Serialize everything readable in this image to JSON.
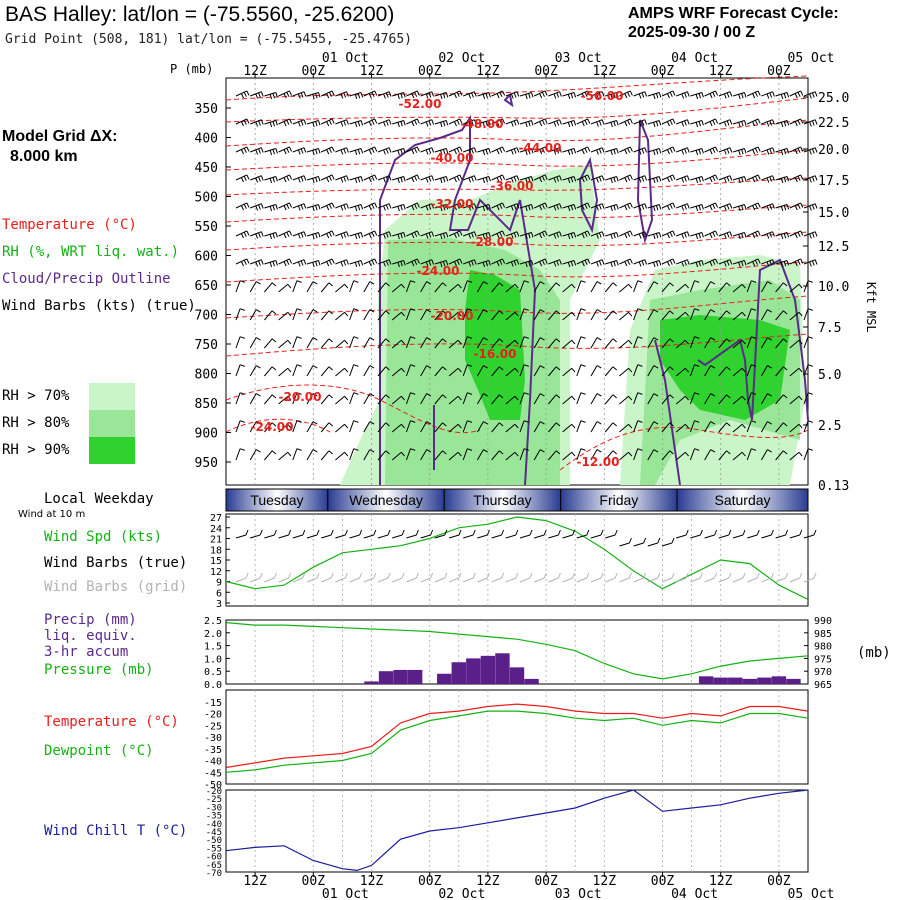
{
  "header": {
    "title": "BAS Halley:  lat/lon = (-75.5560, -25.6200)",
    "subtitle": "Grid Point (508, 181) lat/lon = (-75.5455, -25.4765)",
    "cycle_line1": "AMPS WRF Forecast Cycle:",
    "cycle_line2": "2025-09-30 / 00  Z"
  },
  "left_panel": {
    "grid_dx_line1": "Model Grid ΔX:",
    "grid_dx_line2": "8.000 km",
    "legend_temperature": "Temperature (°C)",
    "legend_rh": "RH (%, WRT liq. wat.)",
    "legend_cloud": "Cloud/Precip Outline",
    "legend_wind": "Wind Barbs (kts) (true)",
    "rh_70": "RH > 70%",
    "rh_80": "RH > 80%",
    "rh_90": "RH > 90%",
    "p_axis_title": "P (mb)",
    "kft_label": "Kft MSL",
    "local_weekday": "Local Weekday",
    "wind_10m": "Wind at 10 m",
    "wind_spd": "Wind Spd (kts)",
    "wind_barbs_true": "Wind Barbs (true)",
    "wind_barbs_grid": "Wind Barbs (grid)",
    "precip_1": "Precip (mm)",
    "precip_2": "liq. equiv.",
    "precip_3": "3-hr accum",
    "pressure": "Pressure (mb)",
    "pressure_unit": "(mb)",
    "temperature": "Temperature (°C)",
    "dewpoint": "Dewpoint (°C)",
    "wind_chill": "Wind Chill T (°C)"
  },
  "colors": {
    "temperature": "#e8201c",
    "rh_70": "#c9f5c9",
    "rh_80": "#99e699",
    "rh_90": "#2fd22f",
    "cloud": "#5b2a8a",
    "wind_speed": "#13b313",
    "pressure": "#13b313",
    "precip": "#5b1f8a",
    "dewpoint": "#13b313",
    "wind_chill": "#1c1c9e",
    "grid_barbs": "#b3b3b3",
    "day_bar": "#23358c"
  },
  "time_axis": {
    "top_hours": [
      "12Z",
      "00Z",
      "12Z",
      "00Z",
      "12Z",
      "00Z",
      "12Z",
      "00Z",
      "12Z",
      "00Z"
    ],
    "top_dates": [
      "01 Oct",
      "02 Oct",
      "03 Oct",
      "04 Oct",
      "05 Oct"
    ],
    "bottom_hours": [
      "12Z",
      "00Z",
      "12Z",
      "00Z",
      "12Z",
      "00Z",
      "12Z",
      "00Z",
      "12Z",
      "00Z"
    ],
    "bottom_dates": [
      "01 Oct",
      "02 Oct",
      "03 Oct",
      "04 Oct",
      "05 Oct"
    ],
    "weekdays": [
      "Tuesday",
      "Wednesday",
      "Thursday",
      "Friday",
      "Saturday"
    ]
  },
  "chart_data": [
    {
      "type": "heatmap",
      "y_pressure_ticks": [
        "350",
        "400",
        "450",
        "500",
        "550",
        "600",
        "650",
        "700",
        "750",
        "800",
        "850",
        "900",
        "950"
      ],
      "y_height_ticks": [
        "25.0",
        "22.5",
        "20.0",
        "17.5",
        "15.0",
        "12.5",
        "10.0",
        "7.5",
        "5.0",
        "2.5",
        "0.13"
      ],
      "temperature_labels": [
        "-52.00",
        "-56.00",
        "-48.00",
        "-44.00",
        "-40.00",
        "-36.00",
        "-32.00",
        "-28.00",
        "-24.00",
        "-20.00",
        "-16.00",
        "-20.00",
        "-24.00",
        "-12.00"
      ]
    },
    {
      "type": "line",
      "name_axis": "Wind Spd (kts)",
      "y_ticks": [
        "27",
        "24",
        "21",
        "18",
        "15",
        "12",
        "9",
        "6",
        "3"
      ],
      "ylim": [
        3,
        27
      ],
      "x_hours": [
        0,
        6,
        12,
        18,
        24,
        30,
        36,
        42,
        48,
        54,
        60,
        66,
        72,
        78,
        84,
        90,
        96,
        102,
        108,
        114,
        120
      ],
      "values": [
        9,
        7,
        8,
        13,
        17,
        18,
        19,
        21,
        24,
        25,
        27,
        26,
        23,
        18,
        12,
        7,
        11,
        15,
        14,
        8,
        4
      ]
    },
    {
      "type": "bar",
      "y_ticks_left": [
        "2.5",
        "2.0",
        "1.5",
        "1.0",
        "0.5",
        "0.0"
      ],
      "y_ticks_right": [
        "990",
        "985",
        "980",
        "975",
        "970",
        "965"
      ],
      "precip_x_hours": [
        30,
        33,
        36,
        39,
        45,
        48,
        51,
        54,
        57,
        60,
        63,
        99,
        102,
        105,
        108,
        111,
        114,
        117
      ],
      "precip_values": [
        0.1,
        0.5,
        0.55,
        0.55,
        0.4,
        0.85,
        1.0,
        1.1,
        1.2,
        0.65,
        0.2,
        0.3,
        0.25,
        0.25,
        0.2,
        0.25,
        0.3,
        0.2
      ],
      "pressure_x_hours": [
        0,
        6,
        12,
        18,
        24,
        30,
        36,
        42,
        48,
        54,
        60,
        66,
        72,
        78,
        84,
        90,
        96,
        102,
        108,
        114,
        120
      ],
      "pressure_values": [
        989,
        988,
        988,
        987.5,
        987,
        986.5,
        986,
        985.5,
        984.5,
        983.5,
        982.5,
        980.5,
        978,
        973,
        969,
        967,
        969,
        972,
        974,
        975,
        976
      ]
    },
    {
      "type": "line",
      "y_ticks": [
        "-15",
        "-20",
        "-25",
        "-30",
        "-35",
        "-40",
        "-45",
        "-50"
      ],
      "ylim": [
        -50,
        -10
      ],
      "x_hours": [
        0,
        6,
        12,
        18,
        24,
        30,
        36,
        42,
        48,
        54,
        60,
        66,
        72,
        78,
        84,
        90,
        96,
        102,
        108,
        114,
        120
      ],
      "series": [
        {
          "name": "Temperature",
          "values": [
            -43,
            -41,
            -39,
            -38,
            -37,
            -34,
            -24,
            -20,
            -19,
            -17,
            -16,
            -17,
            -19,
            -20,
            -20,
            -22,
            -20,
            -21,
            -17,
            -17,
            -19
          ]
        },
        {
          "name": "Dewpoint",
          "values": [
            -45,
            -44,
            -42,
            -41,
            -40,
            -37,
            -27,
            -23,
            -21,
            -19,
            -19,
            -20,
            -22,
            -23,
            -22,
            -25,
            -23,
            -24,
            -20,
            -20,
            -22
          ]
        }
      ]
    },
    {
      "type": "line",
      "y_ticks": [
        "-20",
        "-25",
        "-30",
        "-35",
        "-40",
        "-45",
        "-50",
        "-55",
        "-60",
        "-65",
        "-70"
      ],
      "ylim": [
        -70,
        -20
      ],
      "x_hours": [
        0,
        6,
        12,
        18,
        24,
        27,
        30,
        36,
        42,
        48,
        54,
        60,
        66,
        72,
        78,
        84,
        90,
        96,
        102,
        108,
        114,
        120
      ],
      "values": [
        -57,
        -55,
        -54,
        -63,
        -68,
        -69,
        -66,
        -50,
        -45,
        -43,
        -40,
        -37,
        -34,
        -31,
        -25,
        -20,
        -33,
        -31,
        -29,
        -25,
        -22,
        -20
      ]
    }
  ]
}
